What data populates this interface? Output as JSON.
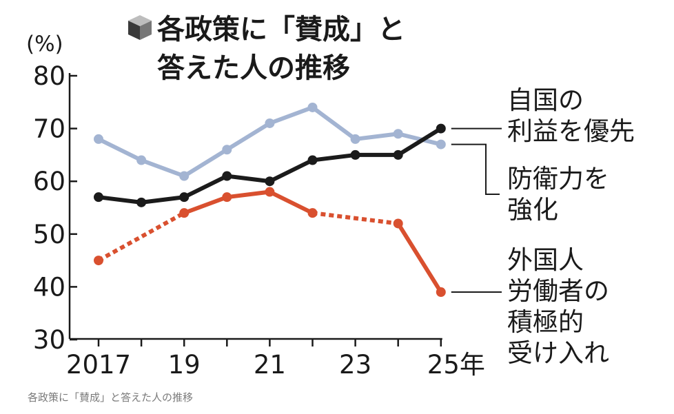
{
  "chart_data": {
    "type": "line",
    "title": "各政策に「賛成」と答えた人の推移",
    "title_lines": [
      "各政策に「賛成」と",
      "答えた人の推移"
    ],
    "unit_label": "(%)",
    "ylim": [
      30,
      80
    ],
    "y_ticks": [
      80,
      70,
      60,
      50,
      40,
      30
    ],
    "x": [
      2017,
      2018,
      2019,
      2020,
      2021,
      2022,
      2023,
      2024,
      2025
    ],
    "x_tick_labels": [
      {
        "year": 2017,
        "label": "2017"
      },
      {
        "year": 2019,
        "label": "19"
      },
      {
        "year": 2021,
        "label": "21"
      },
      {
        "year": 2023,
        "label": "23"
      },
      {
        "year": 2025,
        "label": "25年"
      }
    ],
    "series": [
      {
        "key": "national-interest",
        "name": "自国の利益を優先",
        "legend_lines": [
          "自国の",
          "利益を優先"
        ],
        "color": "#a3b4d2",
        "values": [
          68,
          64,
          61,
          66,
          71,
          74,
          68,
          69,
          67
        ],
        "dashed_segments": []
      },
      {
        "key": "defense",
        "name": "防衛力を強化",
        "legend_lines": [
          "防衛力を",
          "強化"
        ],
        "color": "#1b1b1b",
        "values": [
          57,
          56,
          57,
          61,
          60,
          64,
          65,
          65,
          70
        ],
        "dashed_segments": []
      },
      {
        "key": "foreign-workers",
        "name": "外国人労働者の積極的受け入れ",
        "legend_lines": [
          "外国人",
          "労働者の",
          "積極的",
          "受け入れ"
        ],
        "color": "#d9502f",
        "values": [
          45,
          null,
          54,
          57,
          58,
          54,
          null,
          52,
          39
        ],
        "dashed_segments": [
          [
            2017,
            2019
          ],
          [
            2022,
            2024
          ]
        ]
      }
    ]
  },
  "caption": "各政策に「賛成」と答えた人の推移"
}
